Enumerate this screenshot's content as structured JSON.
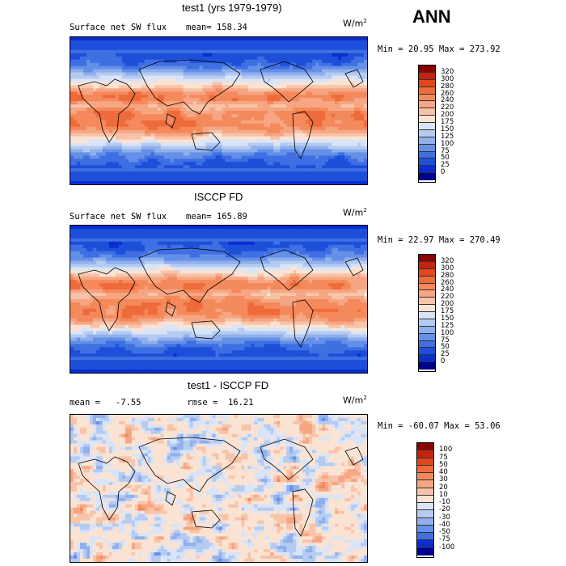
{
  "season": "ANN",
  "panels": [
    {
      "title": "test1 (yrs 1979-1979)",
      "field": "Surface net SW flux",
      "stat_text": "mean=  158.34",
      "units": "W/m",
      "units_exp": "2",
      "minmax": "Min =  20.95 Max = 273.92",
      "levels": [
        "320",
        "300",
        "280",
        "260",
        "240",
        "220",
        "200",
        "175",
        "150",
        "125",
        "100",
        "75",
        "50",
        "25",
        "0"
      ],
      "colors": [
        "#8b0000",
        "#c4230f",
        "#e2471c",
        "#ef6b3b",
        "#f48a5c",
        "#f6a683",
        "#f7c4aa",
        "#fbe3d3",
        "#d9e4f7",
        "#b5cbf1",
        "#8fb0ec",
        "#6590e7",
        "#3f6fe3",
        "#1d4fd9",
        "#0a2ecd",
        "#00008b"
      ],
      "climate": "sw"
    },
    {
      "title": "ISCCP FD",
      "field": "Surface net SW flux",
      "stat_text": "mean=  165.89",
      "units": "W/m",
      "units_exp": "2",
      "minmax": "Min =  22.97 Max = 270.49",
      "levels": [
        "320",
        "300",
        "280",
        "260",
        "240",
        "220",
        "200",
        "175",
        "150",
        "125",
        "100",
        "75",
        "50",
        "25",
        "0"
      ],
      "colors": [
        "#8b0000",
        "#c4230f",
        "#e2471c",
        "#ef6b3b",
        "#f48a5c",
        "#f6a683",
        "#f7c4aa",
        "#fbe3d3",
        "#d9e4f7",
        "#b5cbf1",
        "#8fb0ec",
        "#6590e7",
        "#3f6fe3",
        "#1d4fd9",
        "#0a2ecd",
        "#00008b"
      ],
      "climate": "sw"
    },
    {
      "title": "test1 - ISCCP FD",
      "field": "",
      "stat_text": "mean =   -7.55         rmse =  16.21",
      "units": "W/m",
      "units_exp": "2",
      "minmax": "Min = -60.07 Max =  53.06",
      "levels": [
        "100",
        "75",
        "50",
        "40",
        "30",
        "20",
        "10",
        "-10",
        "-20",
        "-30",
        "-40",
        "-50",
        "-75",
        "-100"
      ],
      "colors": [
        "#8b0000",
        "#c4230f",
        "#e2471c",
        "#ef6b3b",
        "#f48a5c",
        "#f6a683",
        "#f7c4aa",
        "#fbe3d3",
        "#d9e4f7",
        "#b5cbf1",
        "#8fb0ec",
        "#6590e7",
        "#3f6fe3",
        "#0a2ecd",
        "#00008b"
      ],
      "climate": "diff"
    }
  ]
}
